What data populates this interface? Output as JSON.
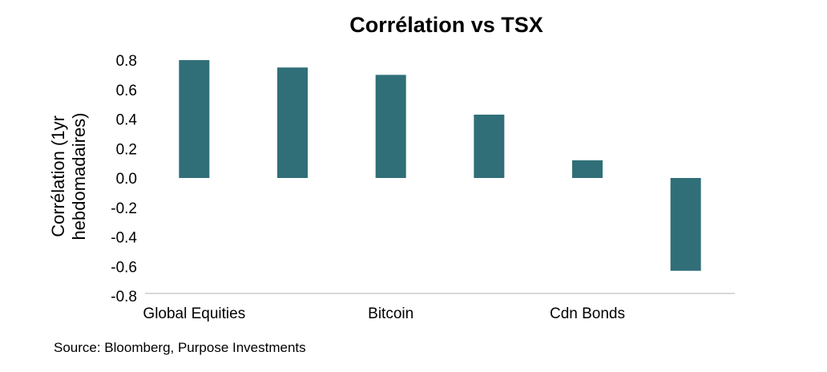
{
  "chart_data": {
    "type": "bar",
    "title": "Corrélation vs TSX",
    "ylabel_lines": [
      "Corrélation (1yr",
      "hebdomadaires)"
    ],
    "xlabel": "",
    "y_ticks": [
      "0.8",
      "0.6",
      "0.4",
      "0.2",
      "0.0",
      "-0.2",
      "-0.4",
      "-0.6",
      "-0.8"
    ],
    "ylim": [
      -0.8,
      0.8
    ],
    "x_tick_labels": [
      "Global Equities",
      "Bitcoin",
      "Cdn Bonds"
    ],
    "categories": [
      "Global Equities",
      "",
      "Bitcoin",
      "",
      "Cdn Bonds",
      ""
    ],
    "values": [
      0.8,
      0.75,
      0.7,
      0.43,
      0.12,
      -0.63
    ],
    "bar_color": "#306f78",
    "grid": false,
    "legend": "none"
  },
  "footer": {
    "source": "Source: Bloomberg, Purpose Investments"
  }
}
